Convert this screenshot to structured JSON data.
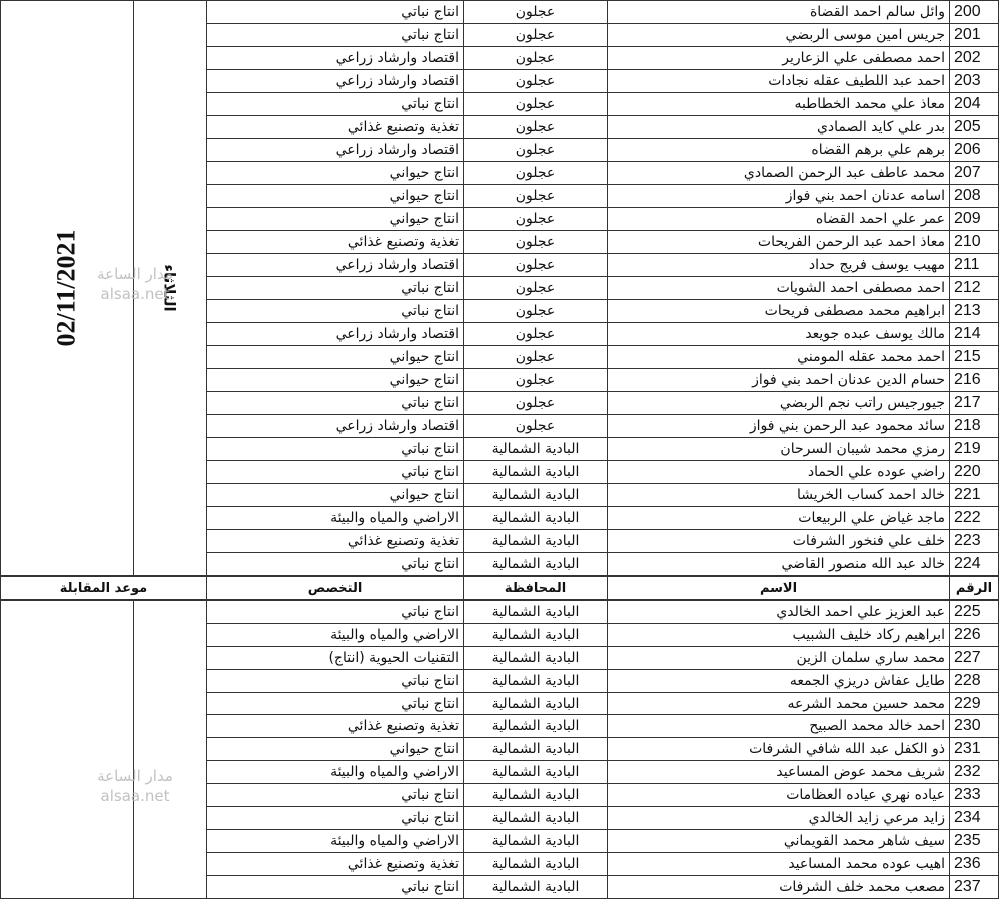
{
  "headers": {
    "number": "الرقم",
    "name": "الاسم",
    "governorate": "المحافظة",
    "specialization": "التخصص",
    "interview_date": "موعد المقابلة"
  },
  "block1": {
    "day": "الثلاثاء",
    "date": "02/11/2021",
    "rows": [
      {
        "n": "200",
        "name": "وائل سالم احمد القضاة",
        "gov": "عجلون",
        "spec": "انتاج نباتي"
      },
      {
        "n": "201",
        "name": "جريس امين موسى الربضي",
        "gov": "عجلون",
        "spec": "انتاج نباتي"
      },
      {
        "n": "202",
        "name": "احمد مصطفى علي الزعارير",
        "gov": "عجلون",
        "spec": "اقتصاد وارشاد زراعي"
      },
      {
        "n": "203",
        "name": "احمد عبد اللطيف عقله نجادات",
        "gov": "عجلون",
        "spec": "اقتصاد وارشاد زراعي"
      },
      {
        "n": "204",
        "name": "معاذ علي محمد الخطاطبه",
        "gov": "عجلون",
        "spec": "انتاج نباتي"
      },
      {
        "n": "205",
        "name": "بدر علي كايد الصمادي",
        "gov": "عجلون",
        "spec": "تغذية وتصنيع غذائي"
      },
      {
        "n": "206",
        "name": "برهم علي برهم القضاه",
        "gov": "عجلون",
        "spec": "اقتصاد وارشاد زراعي"
      },
      {
        "n": "207",
        "name": "محمد عاطف عبد الرحمن الصمادي",
        "gov": "عجلون",
        "spec": "انتاج حيواني"
      },
      {
        "n": "208",
        "name": "اسامه عدنان احمد بني فواز",
        "gov": "عجلون",
        "spec": "انتاج حيواني"
      },
      {
        "n": "209",
        "name": "عمر علي احمد القضاه",
        "gov": "عجلون",
        "spec": "انتاج حيواني"
      },
      {
        "n": "210",
        "name": "معاذ احمد عبد الرحمن الفريحات",
        "gov": "عجلون",
        "spec": "تغذية وتصنيع غذائي"
      },
      {
        "n": "211",
        "name": "مهيب يوسف فريج حداد",
        "gov": "عجلون",
        "spec": "اقتصاد وارشاد زراعي"
      },
      {
        "n": "212",
        "name": "احمد مصطفى احمد الشويات",
        "gov": "عجلون",
        "spec": "انتاج نباتي"
      },
      {
        "n": "213",
        "name": "ابراهيم محمد مصطفى فريحات",
        "gov": "عجلون",
        "spec": "انتاج نباتي"
      },
      {
        "n": "214",
        "name": "مالك يوسف عبده جويعد",
        "gov": "عجلون",
        "spec": "اقتصاد وارشاد زراعي"
      },
      {
        "n": "215",
        "name": "احمد محمد عقله المومني",
        "gov": "عجلون",
        "spec": "انتاج حيواني"
      },
      {
        "n": "216",
        "name": "حسام الدين عدنان احمد بني فواز",
        "gov": "عجلون",
        "spec": "انتاج حيواني"
      },
      {
        "n": "217",
        "name": "جيورجيس راتب نجم الربضي",
        "gov": "عجلون",
        "spec": "انتاج نباتي"
      },
      {
        "n": "218",
        "name": "سائد محمود عبد الرحمن بني فواز",
        "gov": "عجلون",
        "spec": "اقتصاد وارشاد زراعي"
      },
      {
        "n": "219",
        "name": "رمزي محمد شيبان السرحان",
        "gov": "البادية الشمالية",
        "spec": "انتاج نباتي"
      },
      {
        "n": "220",
        "name": "راضي عوده علي الحماد",
        "gov": "البادية الشمالية",
        "spec": "انتاج نباتي"
      },
      {
        "n": "221",
        "name": "خالد احمد كساب الخريشا",
        "gov": "البادية الشمالية",
        "spec": "انتاج حيواني"
      },
      {
        "n": "222",
        "name": "ماجد غياض علي الربيعات",
        "gov": "البادية الشمالية",
        "spec": "الاراضي والمياه والبيئة"
      },
      {
        "n": "223",
        "name": "خلف علي فنخور الشرفات",
        "gov": "البادية الشمالية",
        "spec": "تغذية وتصنيع غذائي"
      },
      {
        "n": "224",
        "name": "خالد عبد الله منصور القاضي",
        "gov": "البادية الشمالية",
        "spec": "انتاج نباتي"
      }
    ]
  },
  "block2": {
    "rows": [
      {
        "n": "225",
        "name": "عبد العزيز علي احمد الخالدي",
        "gov": "البادية الشمالية",
        "spec": "انتاج نباتي"
      },
      {
        "n": "226",
        "name": "ابراهيم ركاد خليف الشبيب",
        "gov": "البادية الشمالية",
        "spec": "الاراضي والمياه والبيئة"
      },
      {
        "n": "227",
        "name": "محمد ساري سلمان الزين",
        "gov": "البادية الشمالية",
        "spec": "التقنيات الحيوية (انتاج)"
      },
      {
        "n": "228",
        "name": "طايل عفاش دريزي الجمعه",
        "gov": "البادية الشمالية",
        "spec": "انتاج نباتي"
      },
      {
        "n": "229",
        "name": "محمد حسين محمد الشرعه",
        "gov": "البادية الشمالية",
        "spec": "انتاج نباتي"
      },
      {
        "n": "230",
        "name": "احمد خالد محمد الصبيح",
        "gov": "البادية الشمالية",
        "spec": "تغذية وتصنيع غذائي"
      },
      {
        "n": "231",
        "name": "ذو الكفل عبد الله شافي الشرفات",
        "gov": "البادية الشمالية",
        "spec": "انتاج حيواني"
      },
      {
        "n": "232",
        "name": "شريف محمد عوض المساعيد",
        "gov": "البادية الشمالية",
        "spec": "الاراضي والمياه والبيئة"
      },
      {
        "n": "233",
        "name": "عياده نهري عياده العظامات",
        "gov": "البادية الشمالية",
        "spec": "انتاج نباتي"
      },
      {
        "n": "234",
        "name": "زايد مرعي زايد الخالدي",
        "gov": "البادية الشمالية",
        "spec": "انتاج نباتي"
      },
      {
        "n": "235",
        "name": "سيف شاهر محمد القويماني",
        "gov": "البادية الشمالية",
        "spec": "الاراضي والمياه والبيئة"
      },
      {
        "n": "236",
        "name": "اهيب عوده محمد المساعيد",
        "gov": "البادية الشمالية",
        "spec": "تغذية وتصنيع غذائي"
      },
      {
        "n": "237",
        "name": "مصعب محمد خلف الشرفات",
        "gov": "البادية الشمالية",
        "spec": "انتاج نباتي"
      }
    ]
  },
  "watermark": {
    "line1": "مدار الساعة",
    "line2": "alsaa.net"
  }
}
